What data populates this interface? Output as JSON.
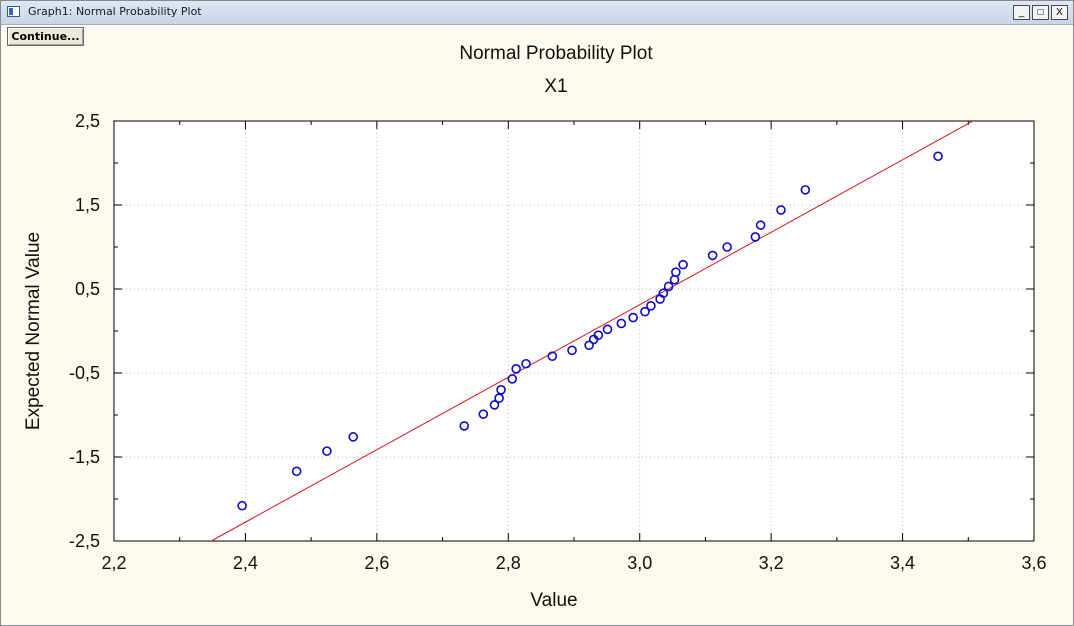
{
  "window": {
    "title": "Graph1: Normal Probability Plot",
    "buttons": [
      "_",
      "□",
      "X"
    ]
  },
  "toolbar": {
    "continue_label": "Continue..."
  },
  "colors": {
    "background": "#fdf9ee",
    "plot_area": "#ffffff",
    "points": "#0b0bc8",
    "fit_line": "#d4171c"
  },
  "chart_data": {
    "type": "scatter",
    "title": "Normal Probability Plot",
    "subtitle": "X1",
    "xlabel": "Value",
    "ylabel": "Expected Normal Value",
    "xlim": [
      2.2,
      3.6
    ],
    "ylim": [
      -2.5,
      2.5
    ],
    "xticks": [
      "2,2",
      "2,4",
      "2,6",
      "2,8",
      "3,0",
      "3,2",
      "3,4",
      "3,6"
    ],
    "xtick_values": [
      2.2,
      2.4,
      2.6,
      2.8,
      3.0,
      3.2,
      3.4,
      3.6
    ],
    "yticks": [
      "2,5",
      "1,5",
      "0,5",
      "-0,5",
      "-1,5",
      "-2,5"
    ],
    "ytick_values": [
      2.5,
      1.5,
      0.5,
      -0.5,
      -1.5,
      -2.5
    ],
    "grid": true,
    "points": [
      {
        "x": 2.395,
        "y": -2.08
      },
      {
        "x": 2.478,
        "y": -1.67
      },
      {
        "x": 2.524,
        "y": -1.43
      },
      {
        "x": 2.564,
        "y": -1.26
      },
      {
        "x": 2.733,
        "y": -1.13
      },
      {
        "x": 2.762,
        "y": -0.99
      },
      {
        "x": 2.779,
        "y": -0.88
      },
      {
        "x": 2.786,
        "y": -0.8
      },
      {
        "x": 2.789,
        "y": -0.7
      },
      {
        "x": 2.806,
        "y": -0.57
      },
      {
        "x": 2.812,
        "y": -0.45
      },
      {
        "x": 2.827,
        "y": -0.39
      },
      {
        "x": 2.867,
        "y": -0.3
      },
      {
        "x": 2.897,
        "y": -0.23
      },
      {
        "x": 2.923,
        "y": -0.17
      },
      {
        "x": 2.93,
        "y": -0.1
      },
      {
        "x": 2.937,
        "y": -0.05
      },
      {
        "x": 2.951,
        "y": 0.02
      },
      {
        "x": 2.972,
        "y": 0.09
      },
      {
        "x": 2.99,
        "y": 0.16
      },
      {
        "x": 3.008,
        "y": 0.23
      },
      {
        "x": 3.017,
        "y": 0.3
      },
      {
        "x": 3.031,
        "y": 0.38
      },
      {
        "x": 3.036,
        "y": 0.45
      },
      {
        "x": 3.044,
        "y": 0.53
      },
      {
        "x": 3.053,
        "y": 0.61
      },
      {
        "x": 3.055,
        "y": 0.7
      },
      {
        "x": 3.066,
        "y": 0.79
      },
      {
        "x": 3.111,
        "y": 0.9
      },
      {
        "x": 3.133,
        "y": 1.0
      },
      {
        "x": 3.176,
        "y": 1.12
      },
      {
        "x": 3.184,
        "y": 1.26
      },
      {
        "x": 3.215,
        "y": 1.44
      },
      {
        "x": 3.252,
        "y": 1.68
      },
      {
        "x": 3.454,
        "y": 2.08
      }
    ],
    "fit_line": {
      "x": [
        2.348,
        3.507
      ],
      "y": [
        -2.5,
        2.5
      ]
    }
  }
}
